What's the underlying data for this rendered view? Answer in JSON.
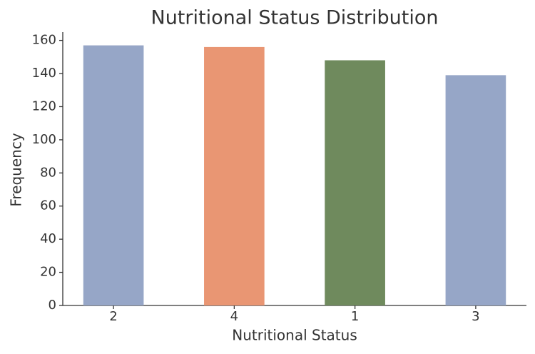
{
  "chart_data": {
    "type": "bar",
    "title": "Nutritional Status Distribution",
    "x_label": "Nutritional Status",
    "y_label": "Frequency",
    "categories": [
      "2",
      "4",
      "1",
      "3"
    ],
    "values": [
      157,
      156,
      148,
      139
    ],
    "colors": [
      "#96a6c7",
      "#e99673",
      "#6f8a5d",
      "#96a6c7"
    ],
    "ylim": [
      0,
      165
    ],
    "yticks": [
      0,
      20,
      40,
      60,
      80,
      100,
      120,
      140,
      160
    ],
    "grid": false
  }
}
